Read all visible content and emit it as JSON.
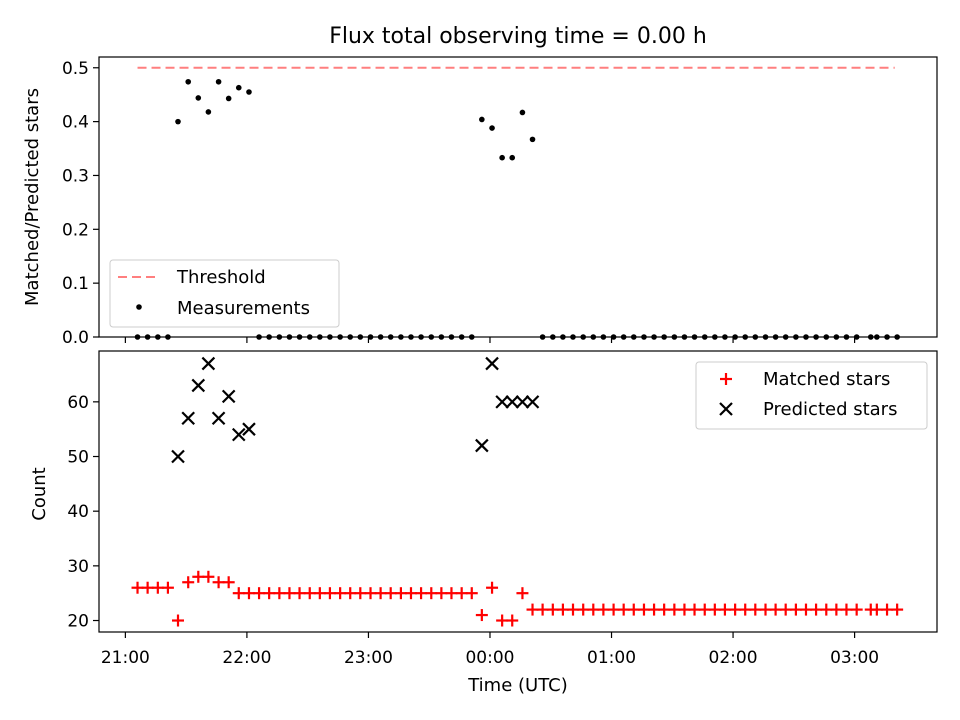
{
  "title": "Flux total observing time = 0.00 h",
  "xlabel": "Time (UTC)",
  "colors": {
    "threshold": "#ff7f7f",
    "measurements": "#000000",
    "matched": "#ff0000",
    "predicted": "#000000"
  },
  "chart_data": [
    {
      "type": "scatter",
      "ylabel": "Matched/Predicted stars",
      "ylim": [
        0.0,
        0.52
      ],
      "yticks": [
        0.0,
        0.1,
        0.2,
        0.3,
        0.4,
        0.5
      ],
      "ytick_labels": [
        "0.0",
        "0.1",
        "0.2",
        "0.3",
        "0.4",
        "0.5"
      ],
      "xlim_hours": [
        20.783,
        27.678
      ],
      "legend": {
        "position": "lower-left",
        "entries": [
          "Threshold",
          "Measurements"
        ]
      },
      "threshold": {
        "name": "Threshold",
        "y": 0.5,
        "x_range_hours": [
          21.1,
          27.33
        ],
        "style": "dashed"
      },
      "series": [
        {
          "name": "Measurements",
          "marker": "dot",
          "x_hours": [
            21.1,
            21.183,
            21.267,
            21.35,
            21.433,
            21.517,
            21.6,
            21.683,
            21.767,
            21.85,
            21.933,
            22.017,
            22.1,
            22.183,
            22.267,
            22.35,
            22.433,
            22.517,
            22.6,
            22.683,
            22.767,
            22.85,
            22.933,
            23.017,
            23.1,
            23.183,
            23.267,
            23.35,
            23.433,
            23.517,
            23.6,
            23.683,
            23.767,
            23.85,
            23.933,
            24.017,
            24.1,
            24.183,
            24.267,
            24.35,
            24.433,
            24.517,
            24.6,
            24.683,
            24.767,
            24.85,
            24.933,
            25.017,
            25.1,
            25.183,
            25.267,
            25.35,
            25.433,
            25.517,
            25.6,
            25.683,
            25.767,
            25.85,
            25.933,
            26.017,
            26.1,
            26.183,
            26.267,
            26.35,
            26.433,
            26.517,
            26.6,
            26.683,
            26.767,
            26.85,
            26.933,
            27.017,
            27.133,
            27.183,
            27.267,
            27.35
          ],
          "values": [
            0,
            0,
            0,
            0,
            0.4,
            0.474,
            0.444,
            0.418,
            0.474,
            0.443,
            0.463,
            0.455,
            0,
            0,
            0,
            0,
            0,
            0,
            0,
            0,
            0,
            0,
            0,
            0,
            0,
            0,
            0,
            0,
            0,
            0,
            0,
            0,
            0,
            0,
            0.404,
            0.388,
            0.333,
            0.333,
            0.417,
            0.367,
            0,
            0,
            0,
            0,
            0,
            0,
            0,
            0,
            0,
            0,
            0,
            0,
            0,
            0,
            0,
            0,
            0,
            0,
            0,
            0,
            0,
            0,
            0,
            0,
            0,
            0,
            0,
            0,
            0,
            0,
            0,
            0,
            0,
            0,
            0,
            0
          ]
        }
      ]
    },
    {
      "type": "scatter",
      "ylabel": "Count",
      "xlabel": "Time (UTC)",
      "ylim": [
        17.9,
        69.3
      ],
      "yticks": [
        20,
        30,
        40,
        50,
        60
      ],
      "ytick_labels": [
        "20",
        "30",
        "40",
        "50",
        "60"
      ],
      "xlim_hours": [
        20.783,
        27.678
      ],
      "xticks_hours": [
        21,
        22,
        23,
        24,
        25,
        26,
        27
      ],
      "xtick_labels": [
        "21:00",
        "22:00",
        "23:00",
        "00:00",
        "01:00",
        "02:00",
        "03:00"
      ],
      "legend": {
        "position": "upper-right",
        "entries": [
          "Matched stars",
          "Predicted stars"
        ]
      },
      "series": [
        {
          "name": "Matched stars",
          "marker": "plus",
          "x_hours": [
            21.1,
            21.183,
            21.267,
            21.35,
            21.433,
            21.517,
            21.6,
            21.683,
            21.767,
            21.85,
            21.933,
            22.017,
            22.1,
            22.183,
            22.267,
            22.35,
            22.433,
            22.517,
            22.6,
            22.683,
            22.767,
            22.85,
            22.933,
            23.017,
            23.1,
            23.183,
            23.267,
            23.35,
            23.433,
            23.517,
            23.6,
            23.683,
            23.767,
            23.85,
            23.933,
            24.017,
            24.1,
            24.183,
            24.267,
            24.35,
            24.433,
            24.517,
            24.6,
            24.683,
            24.767,
            24.85,
            24.933,
            25.017,
            25.1,
            25.183,
            25.267,
            25.35,
            25.433,
            25.517,
            25.6,
            25.683,
            25.767,
            25.85,
            25.933,
            26.017,
            26.1,
            26.183,
            26.267,
            26.35,
            26.433,
            26.517,
            26.6,
            26.683,
            26.767,
            26.85,
            26.933,
            27.017,
            27.133,
            27.183,
            27.267,
            27.35
          ],
          "values": [
            26,
            26,
            26,
            26,
            20,
            27,
            28,
            28,
            27,
            27,
            25,
            25,
            25,
            25,
            25,
            25,
            25,
            25,
            25,
            25,
            25,
            25,
            25,
            25,
            25,
            25,
            25,
            25,
            25,
            25,
            25,
            25,
            25,
            25,
            21,
            26,
            20,
            20,
            25,
            22,
            22,
            22,
            22,
            22,
            22,
            22,
            22,
            22,
            22,
            22,
            22,
            22,
            22,
            22,
            22,
            22,
            22,
            22,
            22,
            22,
            22,
            22,
            22,
            22,
            22,
            22,
            22,
            22,
            22,
            22,
            22,
            22,
            22,
            22,
            22,
            22
          ]
        },
        {
          "name": "Predicted stars",
          "marker": "x",
          "x_hours": [
            21.433,
            21.517,
            21.6,
            21.683,
            21.767,
            21.85,
            21.933,
            22.017,
            23.933,
            24.017,
            24.1,
            24.183,
            24.267,
            24.35
          ],
          "values": [
            50,
            57,
            63,
            67,
            57,
            61,
            54,
            55,
            52,
            67,
            60,
            60,
            60,
            60
          ]
        }
      ]
    }
  ]
}
